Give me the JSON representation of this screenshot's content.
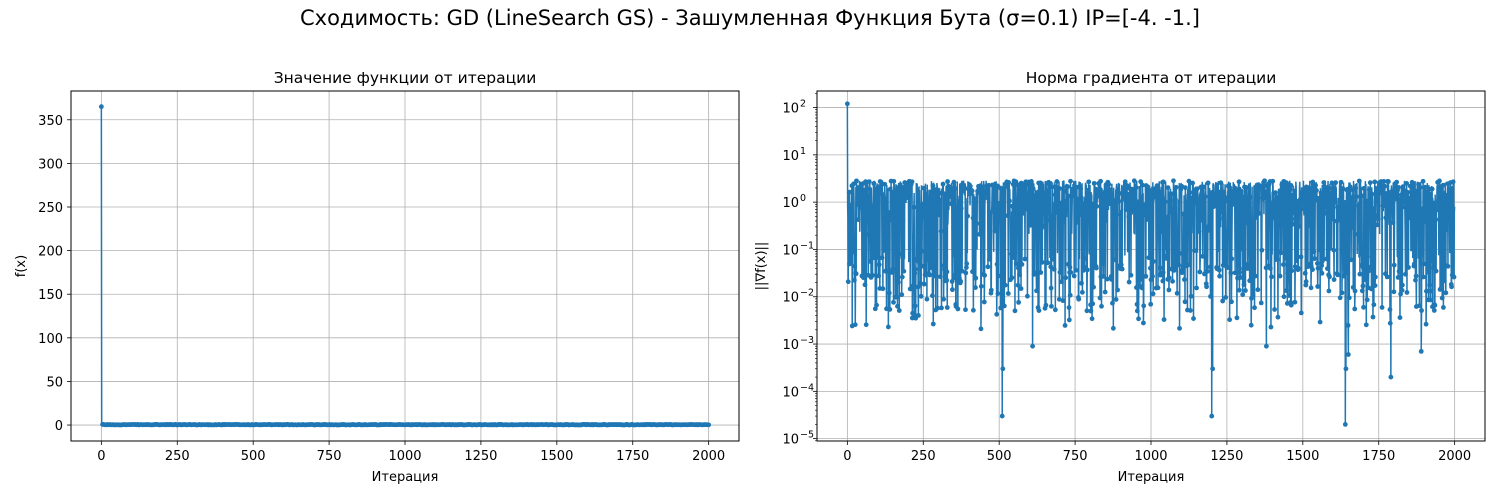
{
  "figure": {
    "suptitle": "Сходимость: GD (LineSearch GS) - Зашумленная Функция Бута (σ=0.1) IP=[-4. -1.]"
  },
  "chart_data": [
    {
      "type": "line",
      "title": "Значение функции от итерации",
      "xlabel": "Итерация",
      "ylabel": "f(x)",
      "xlim": [
        -100,
        2100
      ],
      "ylim": [
        -18.3,
        383
      ],
      "xticks": [
        0,
        250,
        500,
        750,
        1000,
        1250,
        1500,
        1750,
        2000
      ],
      "xtick_labels": [
        "0",
        "250",
        "500",
        "750",
        "1000",
        "1250",
        "1500",
        "1750",
        "2000"
      ],
      "yticks": [
        0,
        50,
        100,
        150,
        200,
        250,
        300,
        350
      ],
      "ytick_labels": [
        "0",
        "50",
        "100",
        "150",
        "200",
        "250",
        "300",
        "350"
      ],
      "grid": true,
      "marker": "circle",
      "color": "#1f77b4",
      "n_iterations": 2000,
      "series": [
        {
          "name": "",
          "initial_point": [
            0,
            365
          ],
          "steady_level": 0.4,
          "steady_noise": 0.6
        }
      ]
    },
    {
      "type": "line",
      "title": "Норма градиента от итерации",
      "xlabel": "Итерация",
      "ylabel": "||∇f(x)||",
      "yscale": "log",
      "xlim": [
        -100,
        2100
      ],
      "ylim_log10": [
        -5.05,
        2.35
      ],
      "xticks": [
        0,
        250,
        500,
        750,
        1000,
        1250,
        1500,
        1750,
        2000
      ],
      "xtick_labels": [
        "0",
        "250",
        "500",
        "750",
        "1000",
        "1250",
        "1500",
        "1750",
        "2000"
      ],
      "yticks_log10": [
        -5,
        -4,
        -3,
        -2,
        -1,
        0,
        1,
        2
      ],
      "ytick_labels": [
        "10",
        "10",
        "10",
        "10",
        "10",
        "10",
        "10",
        "10"
      ],
      "ytick_exponents": [
        "−5",
        "−4",
        "−3",
        "−2",
        "−1",
        "0",
        "1",
        "2"
      ],
      "grid": true,
      "marker": "circle",
      "color": "#1f77b4",
      "n_iterations": 2000,
      "series": [
        {
          "name": "",
          "initial_point": [
            0,
            120
          ],
          "typical_range": [
            0.2,
            3.5
          ],
          "notable_dips": [
            {
              "x": 510,
              "y": 3e-05
            },
            {
              "x": 512,
              "y": 0.0003
            },
            {
              "x": 1200,
              "y": 3e-05
            },
            {
              "x": 1203,
              "y": 0.0003
            },
            {
              "x": 1640,
              "y": 2e-05
            },
            {
              "x": 1642,
              "y": 0.0003
            },
            {
              "x": 1790,
              "y": 0.0002
            },
            {
              "x": 1890,
              "y": 0.0007
            },
            {
              "x": 610,
              "y": 0.0009
            },
            {
              "x": 1380,
              "y": 0.0009
            },
            {
              "x": 1650,
              "y": 0.0006
            },
            {
              "x": 135,
              "y": 0.0023
            },
            {
              "x": 440,
              "y": 0.0021
            },
            {
              "x": 1330,
              "y": 0.0025
            }
          ]
        }
      ]
    }
  ]
}
